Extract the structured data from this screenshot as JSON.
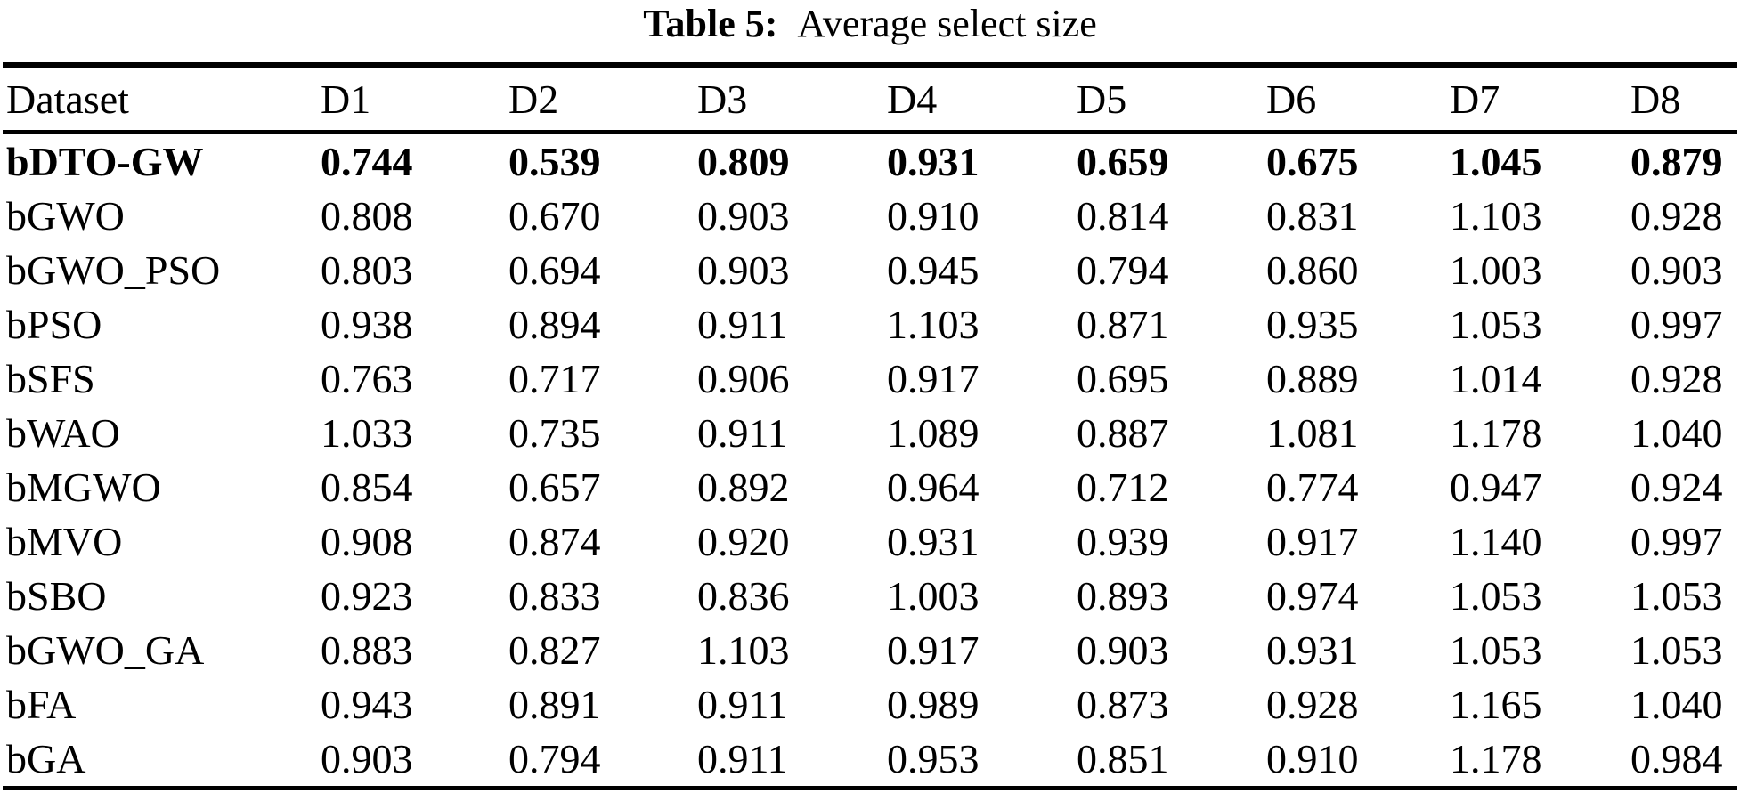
{
  "caption": {
    "label": "Table 5:",
    "title": "Average select size"
  },
  "table": {
    "columns": [
      "Dataset",
      "D1",
      "D2",
      "D3",
      "D4",
      "D5",
      "D6",
      "D7",
      "D8"
    ],
    "rows": [
      {
        "label": "bDTO-GW",
        "bold": true,
        "values": [
          "0.744",
          "0.539",
          "0.809",
          "0.931",
          "0.659",
          "0.675",
          "1.045",
          "0.879"
        ]
      },
      {
        "label": "bGWO",
        "bold": false,
        "values": [
          "0.808",
          "0.670",
          "0.903",
          "0.910",
          "0.814",
          "0.831",
          "1.103",
          "0.928"
        ]
      },
      {
        "label": "bGWO_PSO",
        "bold": false,
        "values": [
          "0.803",
          "0.694",
          "0.903",
          "0.945",
          "0.794",
          "0.860",
          "1.003",
          "0.903"
        ]
      },
      {
        "label": "bPSO",
        "bold": false,
        "values": [
          "0.938",
          "0.894",
          "0.911",
          "1.103",
          "0.871",
          "0.935",
          "1.053",
          "0.997"
        ]
      },
      {
        "label": "bSFS",
        "bold": false,
        "values": [
          "0.763",
          "0.717",
          "0.906",
          "0.917",
          "0.695",
          "0.889",
          "1.014",
          "0.928"
        ]
      },
      {
        "label": "bWAO",
        "bold": false,
        "values": [
          "1.033",
          "0.735",
          "0.911",
          "1.089",
          "0.887",
          "1.081",
          "1.178",
          "1.040"
        ]
      },
      {
        "label": "bMGWO",
        "bold": false,
        "values": [
          "0.854",
          "0.657",
          "0.892",
          "0.964",
          "0.712",
          "0.774",
          "0.947",
          "0.924"
        ]
      },
      {
        "label": "bMVO",
        "bold": false,
        "values": [
          "0.908",
          "0.874",
          "0.920",
          "0.931",
          "0.939",
          "0.917",
          "1.140",
          "0.997"
        ]
      },
      {
        "label": "bSBO",
        "bold": false,
        "values": [
          "0.923",
          "0.833",
          "0.836",
          "1.003",
          "0.893",
          "0.974",
          "1.053",
          "1.053"
        ]
      },
      {
        "label": "bGWO_GA",
        "bold": false,
        "values": [
          "0.883",
          "0.827",
          "1.103",
          "0.917",
          "0.903",
          "0.931",
          "1.053",
          "1.053"
        ]
      },
      {
        "label": "bFA",
        "bold": false,
        "values": [
          "0.943",
          "0.891",
          "0.911",
          "0.989",
          "0.873",
          "0.928",
          "1.165",
          "1.040"
        ]
      },
      {
        "label": "bGA",
        "bold": false,
        "values": [
          "0.903",
          "0.794",
          "0.911",
          "0.953",
          "0.851",
          "0.910",
          "1.178",
          "0.984"
        ]
      }
    ]
  },
  "colors": {
    "text": "#000000",
    "background": "#ffffff",
    "rule": "#000000"
  }
}
